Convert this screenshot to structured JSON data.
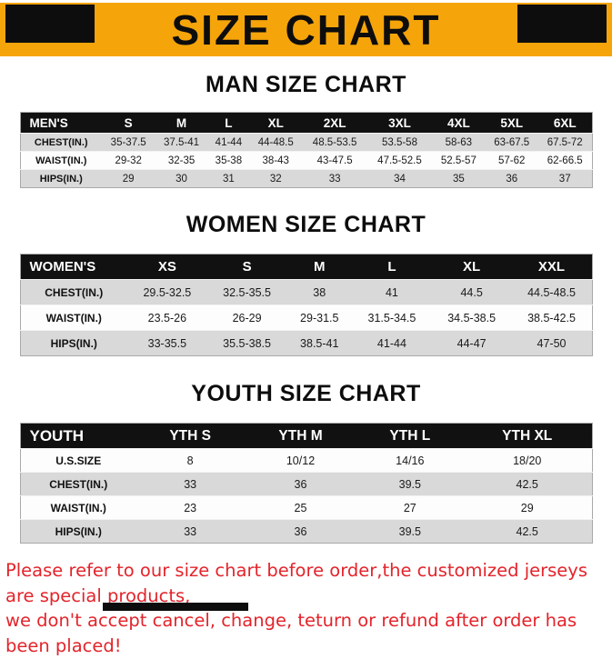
{
  "header": {
    "title": "SIZE CHART"
  },
  "colors": {
    "banner_bg": "#F5A40A",
    "table_header_bg": "#111111",
    "row_stripe": "#D9D9D9",
    "disclaimer_text": "#E3242B"
  },
  "sections": [
    {
      "title": "MAN SIZE CHART",
      "table": {
        "header": [
          "MEN'S",
          "S",
          "M",
          "L",
          "XL",
          "2XL",
          "3XL",
          "4XL",
          "5XL",
          "6XL"
        ],
        "rows": [
          [
            "CHEST(IN.)",
            "35-37.5",
            "37.5-41",
            "41-44",
            "44-48.5",
            "48.5-53.5",
            "53.5-58",
            "58-63",
            "63-67.5",
            "67.5-72"
          ],
          [
            "WAIST(IN.)",
            "29-32",
            "32-35",
            "35-38",
            "38-43",
            "43-47.5",
            "47.5-52.5",
            "52.5-57",
            "57-62",
            "62-66.5"
          ],
          [
            "HIPS(IN.)",
            "29",
            "30",
            "31",
            "32",
            "33",
            "34",
            "35",
            "36",
            "37"
          ]
        ]
      }
    },
    {
      "title": "WOMEN SIZE CHART",
      "table": {
        "header": [
          "WOMEN'S",
          "XS",
          "S",
          "M",
          "L",
          "XL",
          "XXL"
        ],
        "rows": [
          [
            "CHEST(IN.)",
            "29.5-32.5",
            "32.5-35.5",
            "38",
            "41",
            "44.5",
            "44.5-48.5"
          ],
          [
            "WAIST(IN.)",
            "23.5-26",
            "26-29",
            "29-31.5",
            "31.5-34.5",
            "34.5-38.5",
            "38.5-42.5"
          ],
          [
            "HIPS(IN.)",
            "33-35.5",
            "35.5-38.5",
            "38.5-41",
            "41-44",
            "44-47",
            "47-50"
          ]
        ]
      }
    },
    {
      "title": "YOUTH SIZE CHART",
      "table": {
        "header": [
          "YOUTH",
          "YTH S",
          "YTH M",
          "YTH L",
          "YTH XL"
        ],
        "rows": [
          [
            "U.S.SIZE",
            "8",
            "10/12",
            "14/16",
            "18/20"
          ],
          [
            "CHEST(IN.)",
            "33",
            "36",
            "39.5",
            "42.5"
          ],
          [
            "WAIST(IN.)",
            "23",
            "25",
            "27",
            "29"
          ],
          [
            "HIPS(IN.)",
            "33",
            "36",
            "39.5",
            "42.5"
          ]
        ]
      }
    }
  ],
  "footer": {
    "line1": "Please refer to our size chart before order,the customized jerseys are special products,",
    "line2": "we don't accept cancel, change, teturn or refund after order has been placed!"
  }
}
